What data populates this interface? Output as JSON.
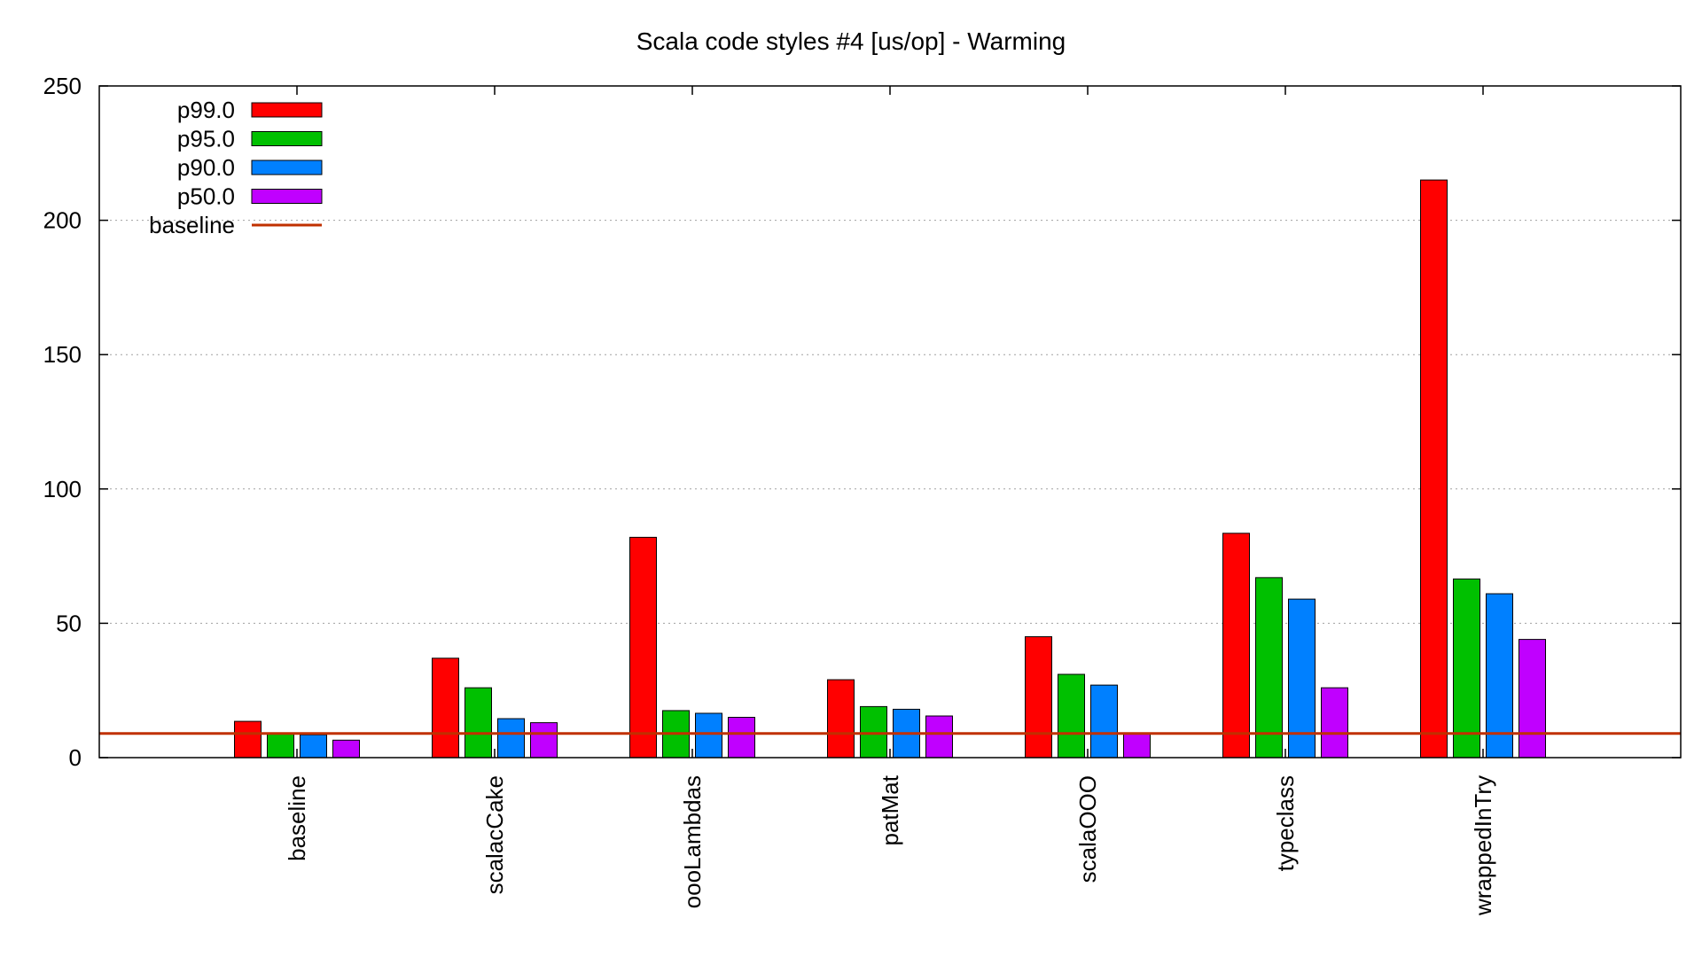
{
  "chart_data": {
    "type": "bar",
    "title": "Scala code styles #4 [us/op] - Warming",
    "xlabel": "",
    "ylabel": "",
    "ylim": [
      0,
      250
    ],
    "yticks": [
      0,
      50,
      100,
      150,
      200,
      250
    ],
    "grid": true,
    "legend_position": "top-left",
    "categories": [
      "baseline",
      "scalacCake",
      "oooLambdas",
      "patMat",
      "scalaOOO",
      "typeclass",
      "wrappedInTry"
    ],
    "series": [
      {
        "name": "p99.0",
        "color": "#ff0000",
        "values": [
          13.5,
          37,
          82,
          29,
          45,
          83.5,
          215
        ]
      },
      {
        "name": "p95.0",
        "color": "#00c000",
        "values": [
          9,
          26,
          17.5,
          19,
          31,
          67,
          66.5
        ]
      },
      {
        "name": "p90.0",
        "color": "#0080ff",
        "values": [
          8.5,
          14.5,
          16.5,
          18,
          27,
          59,
          61
        ]
      },
      {
        "name": "p50.0",
        "color": "#c000ff",
        "values": [
          6.5,
          13,
          15,
          15.5,
          9,
          26,
          44
        ]
      }
    ],
    "baseline": {
      "name": "baseline",
      "color": "#c03000",
      "value": 9
    }
  }
}
